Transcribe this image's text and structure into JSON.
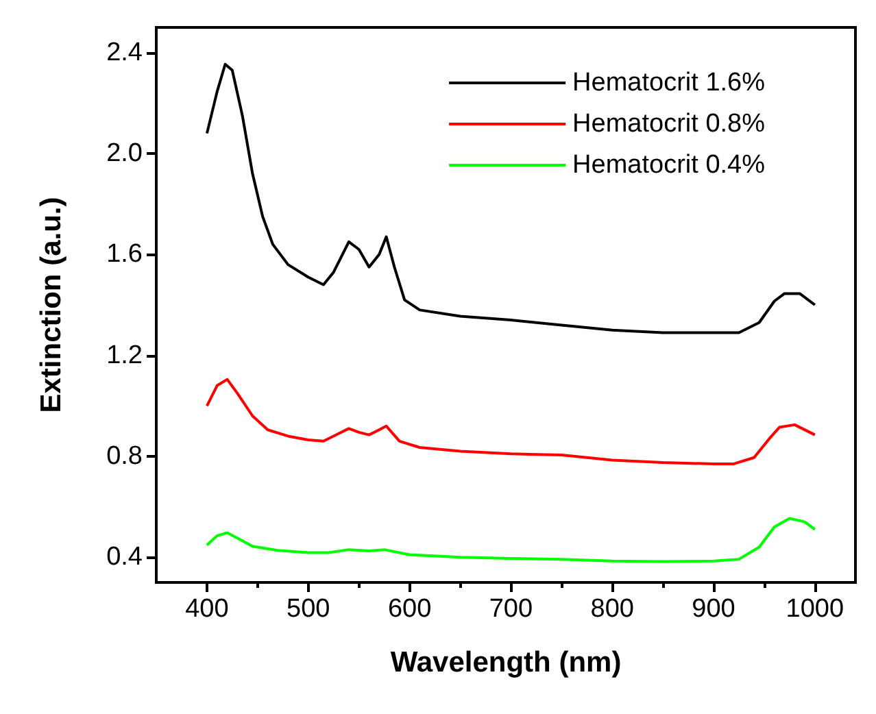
{
  "chart_data": {
    "type": "line",
    "xlabel": "Wavelength (nm)",
    "ylabel": "Extinction (a.u.)",
    "xlim": [
      350,
      1040
    ],
    "xticks": [
      400,
      500,
      600,
      700,
      800,
      900,
      1000
    ],
    "ylim": [
      0.3,
      2.5
    ],
    "yticks": [
      0.4,
      0.8,
      1.2,
      1.6,
      {
        "value": 2,
        "label": "2.0"
      },
      2.4
    ],
    "grid": false,
    "legend": "top right",
    "marker": "none",
    "line_style": "solid",
    "series": [
      {
        "name": "Hematocrit 1.6%",
        "color": "#000000",
        "x": [
          400,
          410,
          418,
          425,
          435,
          445,
          455,
          465,
          480,
          500,
          515,
          525,
          540,
          550,
          560,
          570,
          577,
          585,
          595,
          610,
          650,
          700,
          750,
          800,
          850,
          900,
          925,
          945,
          960,
          970,
          985,
          1000
        ],
        "values": [
          2.08,
          2.245,
          2.354,
          2.33,
          2.15,
          1.92,
          1.75,
          1.64,
          1.56,
          1.51,
          1.48,
          1.53,
          1.65,
          1.62,
          1.55,
          1.6,
          1.67,
          1.55,
          1.42,
          1.38,
          1.355,
          1.34,
          1.32,
          1.3,
          1.29,
          1.29,
          1.29,
          1.33,
          1.415,
          1.445,
          1.445,
          1.4
        ]
      },
      {
        "name": "Hematocrit 0.8%",
        "color": "#ff0000",
        "x": [
          400,
          410,
          420,
          430,
          445,
          460,
          480,
          500,
          515,
          530,
          540,
          550,
          560,
          570,
          577,
          590,
          610,
          650,
          700,
          750,
          800,
          850,
          900,
          920,
          940,
          955,
          965,
          980,
          1000
        ],
        "values": [
          1.0,
          1.08,
          1.105,
          1.05,
          0.96,
          0.905,
          0.88,
          0.865,
          0.86,
          0.89,
          0.91,
          0.895,
          0.885,
          0.905,
          0.92,
          0.86,
          0.835,
          0.82,
          0.81,
          0.805,
          0.785,
          0.775,
          0.77,
          0.77,
          0.795,
          0.87,
          0.915,
          0.925,
          0.885
        ]
      },
      {
        "name": "Hematocrit 0.4%",
        "color": "#00ff00",
        "x": [
          400,
          410,
          420,
          430,
          445,
          470,
          500,
          520,
          540,
          560,
          575,
          600,
          650,
          700,
          750,
          800,
          850,
          900,
          925,
          945,
          960,
          975,
          990,
          1000
        ],
        "values": [
          0.448,
          0.485,
          0.497,
          0.476,
          0.443,
          0.427,
          0.418,
          0.418,
          0.43,
          0.425,
          0.43,
          0.41,
          0.4,
          0.395,
          0.392,
          0.385,
          0.383,
          0.385,
          0.392,
          0.44,
          0.52,
          0.554,
          0.54,
          0.51
        ]
      }
    ]
  }
}
